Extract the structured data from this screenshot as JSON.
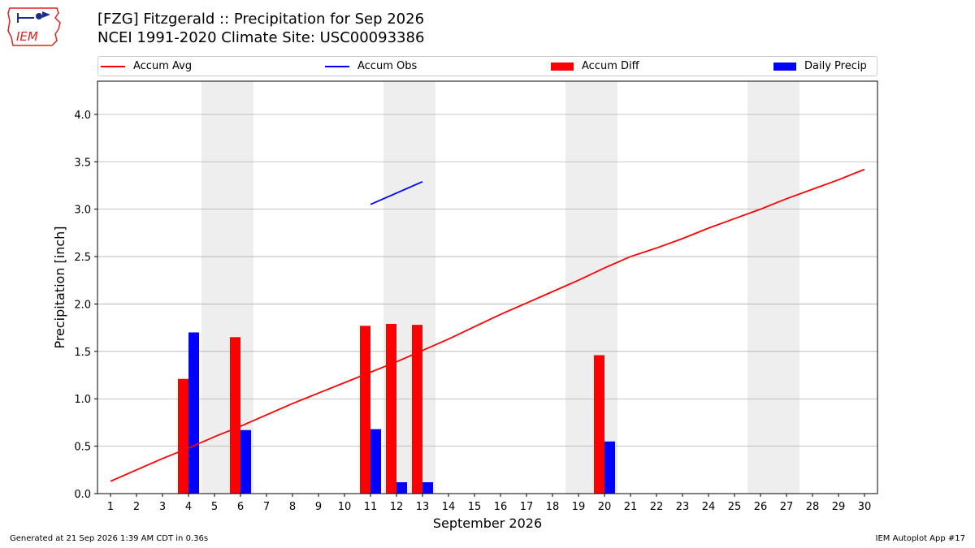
{
  "title_line1": "[FZG] Fitzgerald :: Precipitation for Sep 2026",
  "title_line2": "NCEI 1991-2020 Climate Site: USC00093386",
  "logo_text": "IEM",
  "footer_left": "Generated at 21 Sep 2026 1:39 AM CDT in 0.36s",
  "footer_right": "IEM Autoplot App #17",
  "colors": {
    "avg": "#ff0000",
    "obs": "#0000ff",
    "diff": "#ff0000",
    "daily": "#0000ff",
    "weekend": "#eeeeee",
    "grid": "#b0b0b0"
  },
  "chart_data": {
    "type": "bar",
    "xlabel": "September 2026",
    "ylabel": "Precipitation [inch]",
    "ylim": [
      0,
      4.35
    ],
    "xlim": [
      0.5,
      30.5
    ],
    "yticks": [
      "0.0",
      "0.5",
      "1.0",
      "1.5",
      "2.0",
      "2.5",
      "3.0",
      "3.5",
      "4.0"
    ],
    "grid": "y",
    "legend": {
      "placement": "top",
      "entries": [
        "Accum Avg",
        "Accum Obs",
        "Accum Diff",
        "Daily Precip"
      ]
    },
    "weekend_days": [
      5,
      6,
      12,
      13,
      19,
      20,
      26,
      27
    ],
    "days": [
      1,
      2,
      3,
      4,
      5,
      6,
      7,
      8,
      9,
      10,
      11,
      12,
      13,
      14,
      15,
      16,
      17,
      18,
      19,
      20,
      21,
      22,
      23,
      24,
      25,
      26,
      27,
      28,
      29,
      30
    ],
    "series": [
      {
        "name": "Accum Avg",
        "type": "line",
        "values": [
          0.13,
          0.25,
          0.37,
          0.48,
          0.6,
          0.71,
          0.83,
          0.95,
          1.06,
          1.17,
          1.28,
          1.39,
          1.51,
          1.63,
          1.76,
          1.89,
          2.01,
          2.13,
          2.25,
          2.38,
          2.5,
          2.59,
          2.69,
          2.8,
          2.9,
          3.0,
          3.11,
          3.21,
          3.31,
          3.42
        ]
      },
      {
        "name": "Accum Obs",
        "type": "line",
        "x": [
          11,
          12,
          13
        ],
        "values": [
          3.05,
          3.17,
          3.29
        ]
      },
      {
        "name": "Accum Diff",
        "type": "bar",
        "x": [
          4,
          6,
          11,
          12,
          13,
          20
        ],
        "values": [
          1.21,
          1.65,
          1.77,
          1.79,
          1.78,
          1.46
        ]
      },
      {
        "name": "Daily Precip",
        "type": "bar",
        "x": [
          4,
          6,
          11,
          12,
          13,
          20
        ],
        "values": [
          1.7,
          0.67,
          0.68,
          0.12,
          0.12,
          0.55
        ]
      }
    ]
  }
}
